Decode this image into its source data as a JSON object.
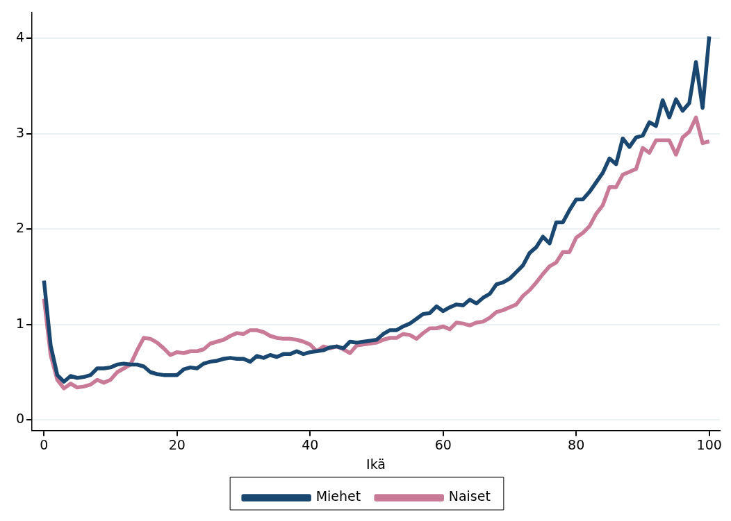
{
  "chart_data": {
    "type": "line",
    "xlabel": "Ikä",
    "x": [
      0,
      1,
      2,
      3,
      4,
      5,
      6,
      7,
      8,
      9,
      10,
      11,
      12,
      13,
      14,
      15,
      16,
      17,
      18,
      19,
      20,
      21,
      22,
      23,
      24,
      25,
      26,
      27,
      28,
      29,
      30,
      31,
      32,
      33,
      34,
      35,
      36,
      37,
      38,
      39,
      40,
      41,
      42,
      43,
      44,
      45,
      46,
      47,
      48,
      49,
      50,
      51,
      52,
      53,
      54,
      55,
      56,
      57,
      58,
      59,
      60,
      61,
      62,
      63,
      64,
      65,
      66,
      67,
      68,
      69,
      70,
      71,
      72,
      73,
      74,
      75,
      76,
      77,
      78,
      79,
      80,
      81,
      82,
      83,
      84,
      85,
      86,
      87,
      88,
      89,
      90,
      91,
      92,
      93,
      94,
      95,
      96,
      97,
      98,
      99,
      100
    ],
    "series": [
      {
        "name": "Miehet",
        "color": "#1a476f",
        "values": [
          1.46,
          0.78,
          0.47,
          0.4,
          0.46,
          0.44,
          0.45,
          0.47,
          0.54,
          0.54,
          0.55,
          0.58,
          0.59,
          0.58,
          0.58,
          0.56,
          0.5,
          0.48,
          0.47,
          0.47,
          0.47,
          0.53,
          0.55,
          0.54,
          0.59,
          0.61,
          0.62,
          0.64,
          0.65,
          0.64,
          0.64,
          0.61,
          0.67,
          0.65,
          0.68,
          0.66,
          0.69,
          0.69,
          0.72,
          0.69,
          0.71,
          0.72,
          0.73,
          0.76,
          0.77,
          0.75,
          0.82,
          0.81,
          0.82,
          0.83,
          0.84,
          0.9,
          0.94,
          0.94,
          0.98,
          1.01,
          1.06,
          1.11,
          1.12,
          1.19,
          1.14,
          1.18,
          1.21,
          1.2,
          1.26,
          1.22,
          1.28,
          1.32,
          1.42,
          1.44,
          1.48,
          1.55,
          1.62,
          1.75,
          1.81,
          1.92,
          1.85,
          2.07,
          2.07,
          2.2,
          2.31,
          2.31,
          2.39,
          2.49,
          2.59,
          2.74,
          2.68,
          2.95,
          2.86,
          2.96,
          2.98,
          3.12,
          3.08,
          3.35,
          3.17,
          3.36,
          3.24,
          3.32,
          3.75,
          3.27,
          4.02
        ]
      },
      {
        "name": "Naiset",
        "color": "#c97a97",
        "values": [
          1.27,
          0.68,
          0.42,
          0.33,
          0.38,
          0.34,
          0.35,
          0.37,
          0.42,
          0.39,
          0.42,
          0.5,
          0.54,
          0.58,
          0.73,
          0.86,
          0.85,
          0.81,
          0.75,
          0.68,
          0.71,
          0.7,
          0.72,
          0.72,
          0.74,
          0.8,
          0.82,
          0.84,
          0.88,
          0.91,
          0.9,
          0.94,
          0.94,
          0.92,
          0.88,
          0.86,
          0.85,
          0.85,
          0.84,
          0.82,
          0.79,
          0.72,
          0.77,
          0.75,
          0.77,
          0.74,
          0.7,
          0.78,
          0.79,
          0.8,
          0.81,
          0.84,
          0.86,
          0.86,
          0.9,
          0.89,
          0.85,
          0.91,
          0.96,
          0.96,
          0.98,
          0.95,
          1.02,
          1.01,
          0.99,
          1.02,
          1.03,
          1.07,
          1.13,
          1.15,
          1.18,
          1.21,
          1.3,
          1.36,
          1.44,
          1.53,
          1.61,
          1.65,
          1.76,
          1.76,
          1.91,
          1.96,
          2.03,
          2.16,
          2.25,
          2.44,
          2.44,
          2.57,
          2.6,
          2.63,
          2.85,
          2.8,
          2.93,
          2.93,
          2.93,
          2.78,
          2.96,
          3.02,
          3.17,
          2.9,
          2.92
        ]
      }
    ],
    "xlim": [
      -1.8,
      101.6
    ],
    "xticks": [
      0,
      20,
      40,
      60,
      80,
      100
    ],
    "ylim": [
      -0.11,
      4.27
    ],
    "yticks": [
      0,
      1,
      2,
      3,
      4
    ],
    "grid": "y",
    "legend": "bottom",
    "marker": "none",
    "line_style": "solid"
  }
}
